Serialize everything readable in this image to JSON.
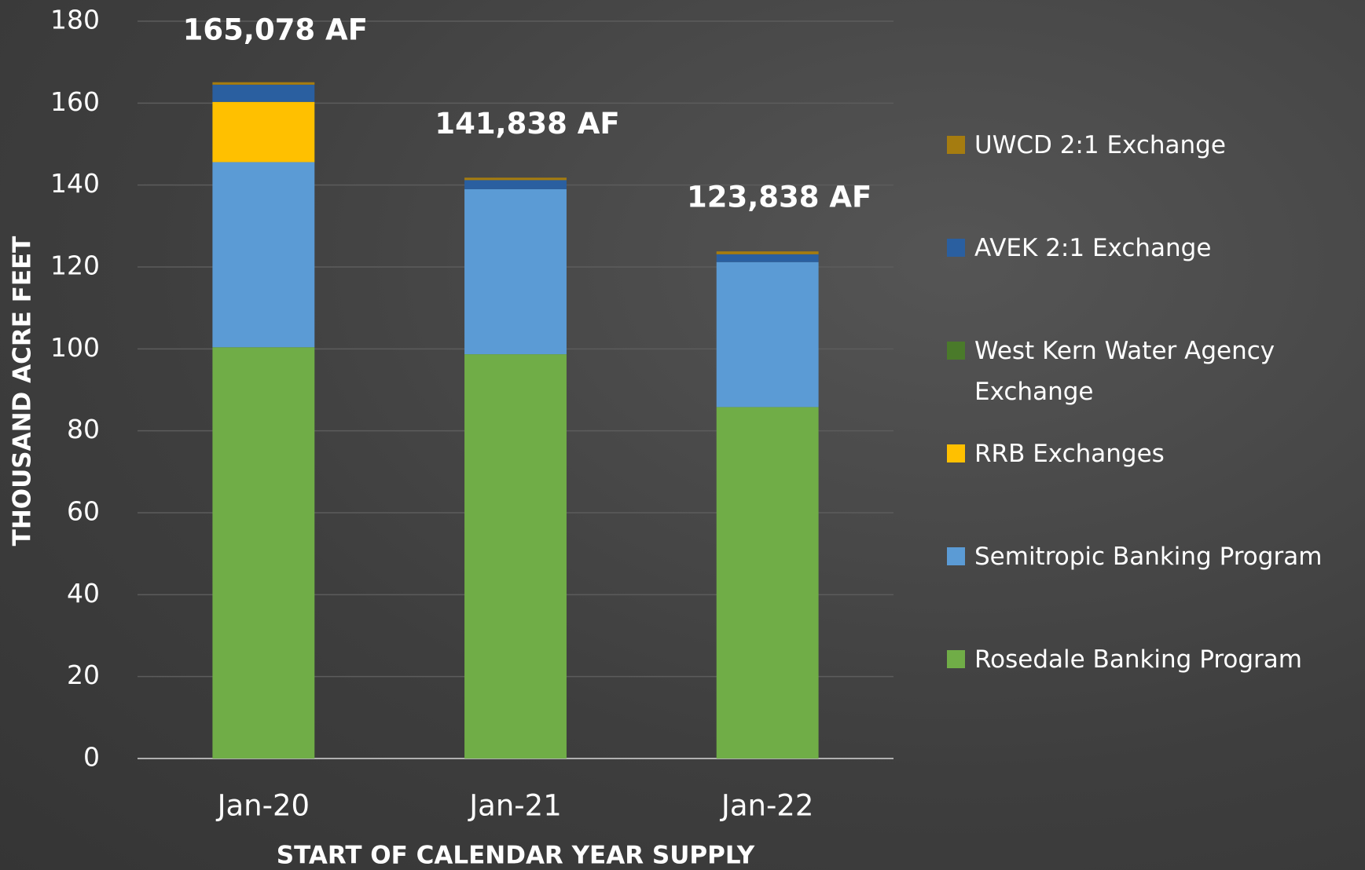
{
  "chart_data": {
    "type": "stacked_bar",
    "x_label": "START OF CALENDAR YEAR SUPPLY",
    "y_label": "THOUSAND ACRE FEET",
    "categories": [
      "Jan-20",
      "Jan-21",
      "Jan-22"
    ],
    "series": [
      {
        "name": "Rosedale Banking Program",
        "color": "#70ad47",
        "values": [
          100.4,
          98.7,
          85.8
        ]
      },
      {
        "name": "Semitropic Banking Program",
        "color": "#5b9bd5",
        "values": [
          45.2,
          40.3,
          35.4
        ]
      },
      {
        "name": "RRB Exchanges",
        "color": "#ffc000",
        "values": [
          14.7,
          0,
          0
        ]
      },
      {
        "name": "West Kern Water Agency Exchange",
        "color": "#4a7a2a",
        "values": [
          0,
          0,
          0
        ]
      },
      {
        "name": "AVEK 2:1 Exchange",
        "color": "#2a5fa0",
        "values": [
          4.2,
          2.2,
          1.9
        ]
      },
      {
        "name": "UWCD 2:1 Exchange",
        "color": "#a57c10",
        "values": [
          0.6,
          0.6,
          0.7
        ]
      }
    ],
    "annotations": [
      "165,078 AF",
      "141,838 AF",
      "123,838 AF"
    ],
    "ylim": [
      0,
      180
    ],
    "yticks": [
      0,
      20,
      40,
      60,
      80,
      100,
      120,
      140,
      160,
      180
    ],
    "grid": true,
    "legend": "right"
  }
}
